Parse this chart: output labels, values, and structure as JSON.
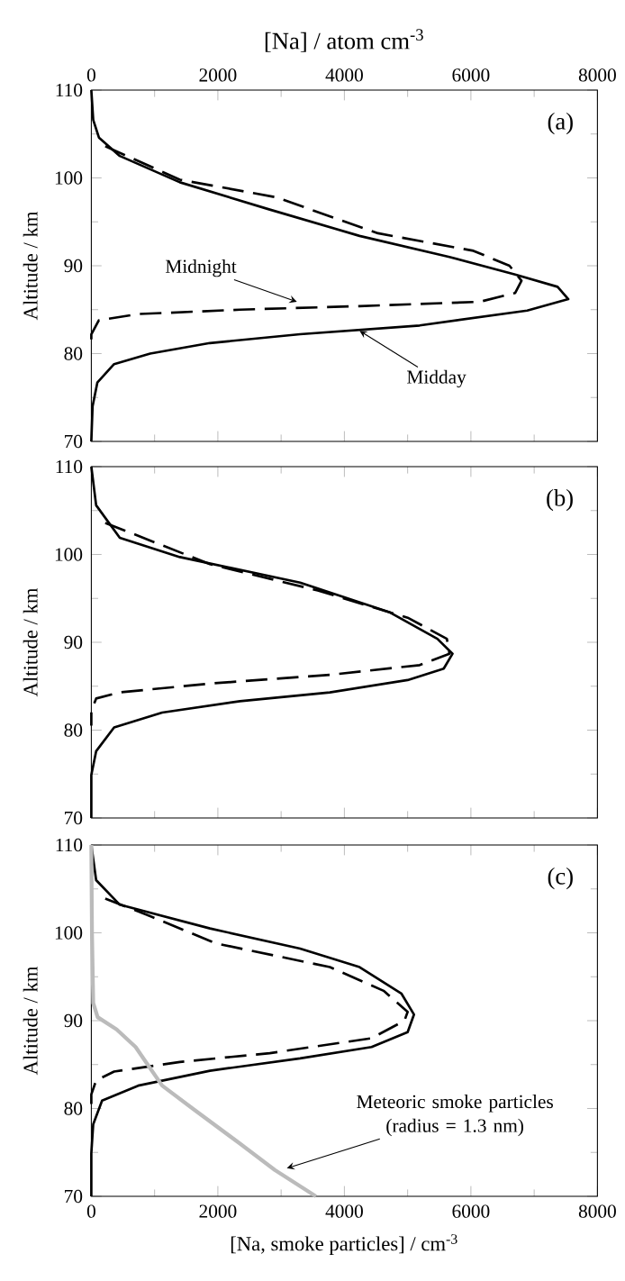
{
  "chart_data": [
    {
      "type": "line",
      "xlabel": "[Na] / atom cm$^{-3}$",
      "ylabel": "Altitude / km",
      "xlim": [
        0,
        8000
      ],
      "xticks": [
        0,
        2000,
        4000,
        6000,
        8000
      ],
      "ylim": [
        70,
        110
      ],
      "yticks": [
        70,
        80,
        90,
        100,
        110
      ],
      "grid": false,
      "marker": "none",
      "annotations": [
        "(a)",
        {
          "text": "Midnight",
          "x": 3250,
          "y": 85.9
        },
        {
          "text": "Midday",
          "x": 4240,
          "y": 82.6
        }
      ],
      "series": [
        {
          "color": "#000000",
          "line_style": "solid",
          "x": [
            0,
            30,
            120,
            450,
            1400,
            2820,
            4240,
            5660,
            6700,
            7370,
            7540,
            6890,
            5190,
            3300,
            1875,
            930,
            360,
            95,
            20,
            0
          ],
          "values": [
            110,
            106.6,
            104.6,
            102.5,
            99.5,
            96.4,
            93.4,
            91.0,
            89.0,
            87.6,
            86.2,
            84.9,
            83.2,
            82.2,
            81.2,
            80.0,
            78.8,
            76.7,
            74.0,
            70
          ]
        },
        {
          "color": "#000000",
          "line_style": "dashed",
          "x": [
            220,
            1400,
            2920,
            4530,
            6040,
            6610,
            6800,
            6700,
            6140,
            4240,
            2350,
            740,
            120,
            0,
            0
          ],
          "values": [
            103.6,
            99.8,
            97.8,
            93.7,
            91.7,
            90.0,
            88.3,
            86.9,
            85.9,
            85.4,
            85.0,
            84.5,
            83.8,
            82.2,
            80.8
          ]
        }
      ]
    },
    {
      "type": "line",
      "ylabel": "Altitude / km",
      "xlim": [
        0,
        8000
      ],
      "xticks": [
        0,
        2000,
        4000,
        6000,
        8000
      ],
      "ylim": [
        70,
        110
      ],
      "yticks": [
        70,
        80,
        90,
        100,
        110
      ],
      "tick_labels": "y",
      "grid": false,
      "marker": "none",
      "annotations": [
        "(b)"
      ],
      "series": [
        {
          "color": "#000000",
          "line_style": "solid",
          "x": [
            0,
            76,
            450,
            1400,
            3300,
            4720,
            5470,
            5710,
            5570,
            5000,
            3770,
            2350,
            1120,
            360,
            76,
            0,
            0
          ],
          "values": [
            110,
            105.6,
            101.9,
            99.7,
            96.8,
            93.4,
            90.4,
            88.7,
            87.0,
            85.7,
            84.3,
            83.3,
            82.0,
            80.3,
            77.6,
            74.9,
            70
          ]
        },
        {
          "color": "#000000",
          "line_style": "dashed",
          "x": [
            220,
            1875,
            3580,
            5000,
            5620,
            5660,
            5190,
            3770,
            1875,
            450,
            76,
            0,
            0
          ],
          "values": [
            103.6,
            98.9,
            95.9,
            92.8,
            90.4,
            88.7,
            87.4,
            86.3,
            85.3,
            84.3,
            83.6,
            82.2,
            80.5
          ]
        }
      ]
    },
    {
      "type": "line",
      "xlabel": "[Na, smoke particles] / cm$^{-3}$",
      "ylabel": "Altitude / km",
      "xlim": [
        0,
        8000
      ],
      "xticks": [
        0,
        2000,
        4000,
        6000,
        8000
      ],
      "ylim": [
        70,
        110
      ],
      "yticks": [
        70,
        80,
        90,
        100,
        110
      ],
      "grid": false,
      "marker": "none",
      "annotations": [
        "(c)",
        {
          "text": "Meteoric smoke particles (radius = 1.3 nm)",
          "x": 3090,
          "y": 73.2
        }
      ],
      "series": [
        {
          "color": "#000000",
          "line_style": "solid",
          "x": [
            0,
            76,
            450,
            1875,
            3300,
            4240,
            4900,
            5100,
            5000,
            4430,
            3300,
            1875,
            740,
            170,
            30,
            0,
            0
          ],
          "values": [
            110,
            106,
            103.2,
            100.5,
            98.2,
            96.1,
            93.1,
            90.7,
            88.7,
            87.0,
            85.7,
            84.3,
            82.6,
            80.9,
            78.2,
            74.9,
            70
          ]
        },
        {
          "color": "#000000",
          "line_style": "dashed",
          "x": [
            220,
            930,
            1970,
            3770,
            4620,
            5000,
            4950,
            4430,
            2820,
            1400,
            360,
            76,
            0,
            0
          ],
          "values": [
            103.9,
            101.9,
            98.8,
            96.1,
            93.4,
            91.0,
            90.0,
            88.0,
            86.3,
            85.3,
            84.2,
            83.2,
            81.6,
            80
          ]
        },
        {
          "color": "#bbbbbb",
          "line_style": "solid",
          "x": [
            0,
            10,
            30,
            100,
            400,
            700,
            890,
            1120,
            1600,
            2350,
            2900,
            3550
          ],
          "values": [
            110,
            100,
            92,
            90.4,
            89.0,
            87.0,
            85.0,
            82.6,
            80.0,
            76.0,
            73.0,
            70
          ]
        }
      ]
    }
  ]
}
